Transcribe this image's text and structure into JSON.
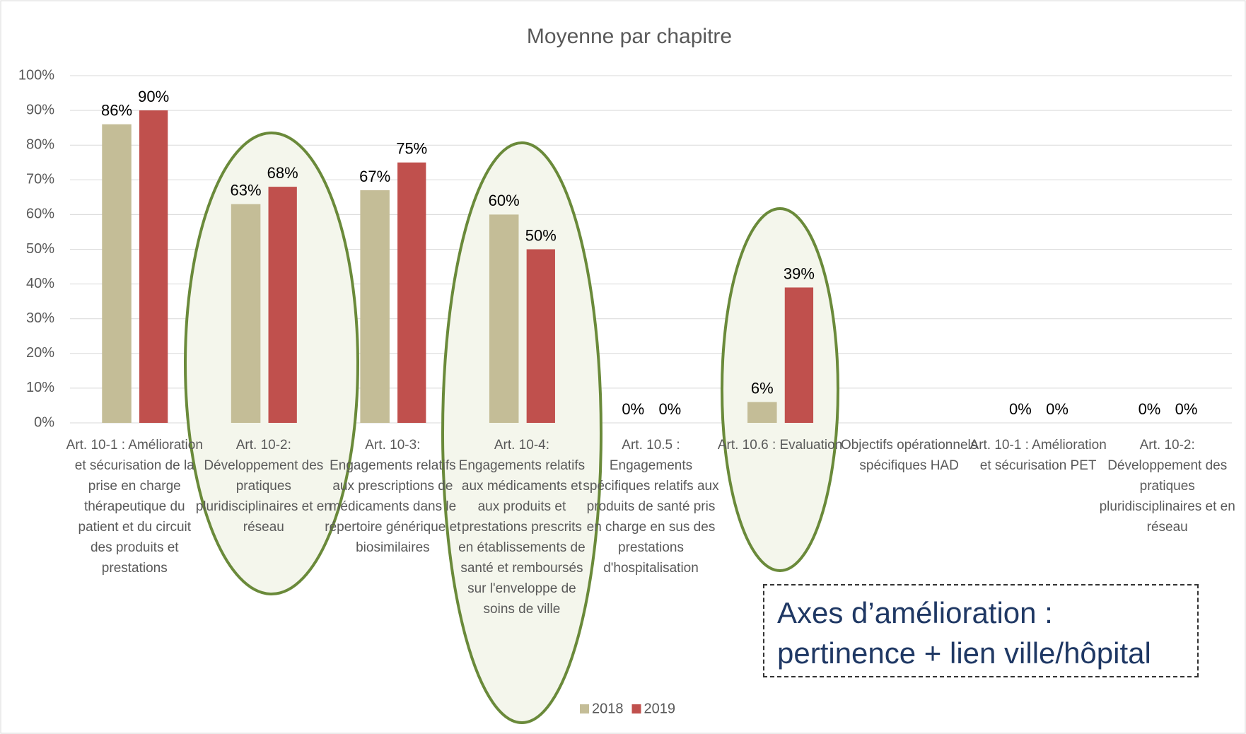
{
  "chart_data": {
    "type": "bar",
    "title": "Moyenne par chapitre",
    "categories": [
      "Art. 10-1 : Amélioration et sécurisation de la prise en charge thérapeutique du patient et du circuit des produits et prestations",
      "Art. 10-2: Développement des pratiques pluridisciplinaires et en réseau",
      "Art. 10-3: Engagements relatifs aux prescriptions de médicaments dans le répertoire générique et biosimilaires",
      "Art. 10-4: Engagements relatifs aux médicaments et aux produits et prestations prescrits en établissements de santé et remboursés sur l'enveloppe de soins de ville",
      "Art. 10.5 : Engagements spécifiques relatifs aux produits de santé pris en charge en sus des prestations d'hospitalisation",
      "Art. 10.6 : Evaluation",
      "Objectifs opérationnels spécifiques HAD",
      "Art. 10-1 : Amélioration et sécurisation PET",
      "Art. 10-2: Développement des pratiques pluridisciplinaires et en réseau"
    ],
    "series": [
      {
        "name": "2018",
        "color": "#c4bd97",
        "values": [
          86,
          63,
          67,
          60,
          0,
          6,
          null,
          0,
          0
        ],
        "value_labels": [
          "86%",
          "63%",
          "67%",
          "60%",
          "0%",
          "6%",
          null,
          "0%",
          "0%"
        ]
      },
      {
        "name": "2019",
        "color": "#c0504d",
        "values": [
          90,
          68,
          75,
          50,
          0,
          39,
          null,
          0,
          0
        ],
        "value_labels": [
          "90%",
          "68%",
          "75%",
          "50%",
          "0%",
          "39%",
          null,
          "0%",
          "0%"
        ]
      }
    ],
    "ylim": [
      0,
      100
    ],
    "yticks": [
      {
        "value": 0,
        "label": "0%"
      },
      {
        "value": 10,
        "label": "10%"
      },
      {
        "value": 20,
        "label": "20%"
      },
      {
        "value": 30,
        "label": "30%"
      },
      {
        "value": 40,
        "label": "40%"
      },
      {
        "value": 50,
        "label": "50%"
      },
      {
        "value": 60,
        "label": "60%"
      },
      {
        "value": 70,
        "label": "70%"
      },
      {
        "value": 80,
        "label": "80%"
      },
      {
        "value": 90,
        "label": "90%"
      },
      {
        "value": 100,
        "label": "100%"
      }
    ],
    "grid": true,
    "legend": "bottom",
    "annotation": "Axes d’amélioration : pertinence + lien ville/hôpital"
  }
}
